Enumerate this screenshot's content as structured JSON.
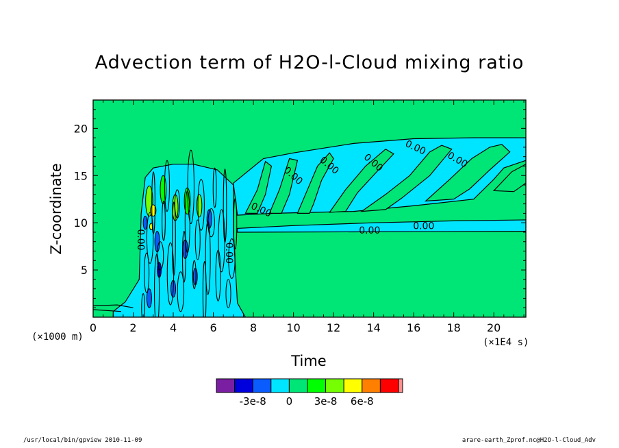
{
  "chart_data": {
    "type": "heatmap",
    "title": "Advection term of H2O-l-Cloud mixing ratio",
    "xlabel": "Time",
    "ylabel": "Z-coordinate",
    "x_unit": "(×1E4 s)",
    "y_unit": "(×1000 m)",
    "xlim": [
      0,
      21.6
    ],
    "ylim": [
      0,
      23.0
    ],
    "x_ticks": [
      0,
      2,
      4,
      6,
      8,
      10,
      12,
      14,
      16,
      18,
      20
    ],
    "y_ticks": [
      5,
      10,
      15,
      20
    ],
    "colorbar": {
      "levels": [
        -4.5e-08,
        -3e-08,
        -1.5e-08,
        0,
        1.5e-08,
        3e-08,
        4.5e-08,
        6e-08
      ],
      "tick_labels": [
        "-3e-8",
        "0",
        "3e-8",
        "6e-8"
      ],
      "colors": [
        "#7b1fa2",
        "#0000dd",
        "#0a5cff",
        "#00e5ff",
        "#00e676",
        "#00ff00",
        "#76ff03",
        "#ffff00",
        "#ff8000",
        "#ff0000",
        "#ff9090"
      ]
    },
    "contour_labels": [
      "0.00",
      "0.00",
      "0.00",
      "0.00",
      "0.00",
      "0.00",
      "0.00",
      "0.00",
      "0.00",
      "0.00"
    ],
    "background_color": "#00e676",
    "negative_band_color": "#00e5ff"
  },
  "footer": {
    "left": "/usr/local/bin/gpview   2010-11-09",
    "right": "arare-earth_Zprof.nc@H2O-l-Cloud_Adv"
  }
}
